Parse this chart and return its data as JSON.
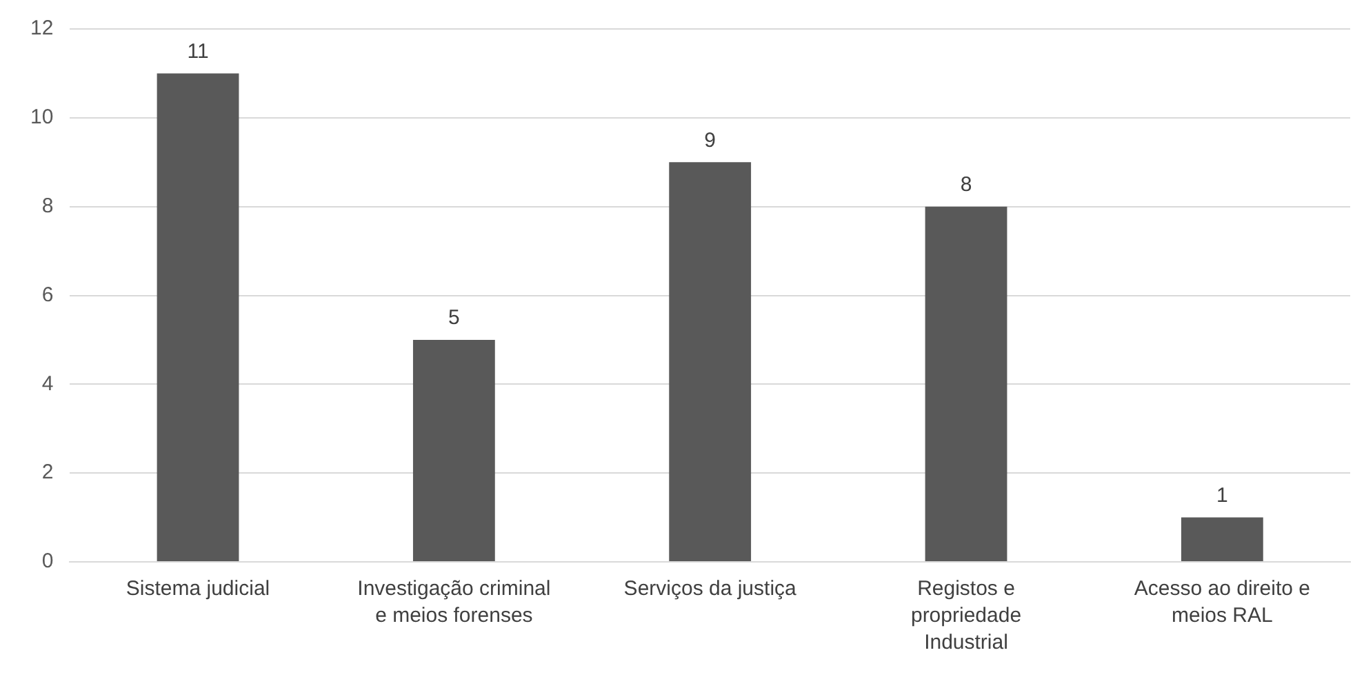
{
  "chart_data": {
    "type": "bar",
    "categories": [
      "Sistema judicial",
      "Investigação criminal e meios forenses",
      "Serviços da justiça",
      "Registos e propriedade Industrial",
      "Acesso ao direito e meios RAL"
    ],
    "values": [
      11,
      5,
      9,
      8,
      1
    ],
    "color": "#595959",
    "ylim": [
      0,
      12
    ],
    "yticks": [
      0,
      2,
      4,
      6,
      8,
      10,
      12
    ],
    "grid": "y",
    "legend": false,
    "data_labels": true
  }
}
